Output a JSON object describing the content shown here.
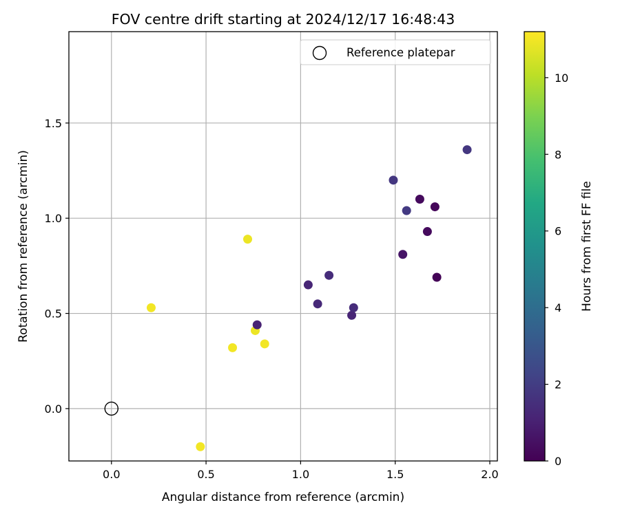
{
  "chart_data": {
    "type": "scatter",
    "title": "FOV centre drift starting at 2024/12/17 16:48:43",
    "xlabel": "Angular distance from reference (arcmin)",
    "ylabel": "Rotation from reference (arcmin)",
    "xlim": [
      -0.225,
      2.04
    ],
    "ylim": [
      -0.275,
      1.98
    ],
    "xticks": [
      0.0,
      0.5,
      1.0,
      1.5,
      2.0
    ],
    "xtick_labels": [
      "0.0",
      "0.5",
      "1.0",
      "1.5",
      "2.0"
    ],
    "yticks": [
      0.0,
      0.5,
      1.0,
      1.5
    ],
    "ytick_labels": [
      "0.0",
      "0.5",
      "1.0",
      "1.5"
    ],
    "grid": true,
    "legend": {
      "position": "top-right",
      "entries": [
        {
          "label": "Reference platepar",
          "marker": "open-circle",
          "color": "#000000"
        }
      ]
    },
    "reference_point": {
      "x": 0.0,
      "y": 0.0
    },
    "colorbar": {
      "label": "Hours from first FF file",
      "colormap": "viridis",
      "range": [
        0,
        11.2
      ],
      "ticks": [
        0,
        2,
        4,
        6,
        8,
        10
      ],
      "tick_labels": [
        "0",
        "2",
        "4",
        "6",
        "8",
        "10"
      ]
    },
    "series": [
      {
        "values": [
          {
            "x": 0.21,
            "y": 0.53,
            "c": 11.0
          },
          {
            "x": 0.47,
            "y": -0.2,
            "c": 11.0
          },
          {
            "x": 0.64,
            "y": 0.32,
            "c": 11.0
          },
          {
            "x": 0.72,
            "y": 0.89,
            "c": 10.9
          },
          {
            "x": 0.76,
            "y": 0.41,
            "c": 10.9
          },
          {
            "x": 0.81,
            "y": 0.34,
            "c": 11.0
          },
          {
            "x": 0.77,
            "y": 0.44,
            "c": 1.1
          },
          {
            "x": 1.04,
            "y": 0.65,
            "c": 1.2
          },
          {
            "x": 1.09,
            "y": 0.55,
            "c": 1.3
          },
          {
            "x": 1.15,
            "y": 0.7,
            "c": 1.4
          },
          {
            "x": 1.27,
            "y": 0.49,
            "c": 1.2
          },
          {
            "x": 1.28,
            "y": 0.53,
            "c": 1.4
          },
          {
            "x": 1.49,
            "y": 1.2,
            "c": 1.8
          },
          {
            "x": 1.54,
            "y": 0.81,
            "c": 0.6
          },
          {
            "x": 1.56,
            "y": 1.04,
            "c": 1.9
          },
          {
            "x": 1.63,
            "y": 1.1,
            "c": 0.3
          },
          {
            "x": 1.67,
            "y": 0.93,
            "c": 0.3
          },
          {
            "x": 1.71,
            "y": 1.06,
            "c": 0.2
          },
          {
            "x": 1.72,
            "y": 0.69,
            "c": 0.1
          },
          {
            "x": 1.88,
            "y": 1.36,
            "c": 1.8
          }
        ]
      }
    ]
  }
}
